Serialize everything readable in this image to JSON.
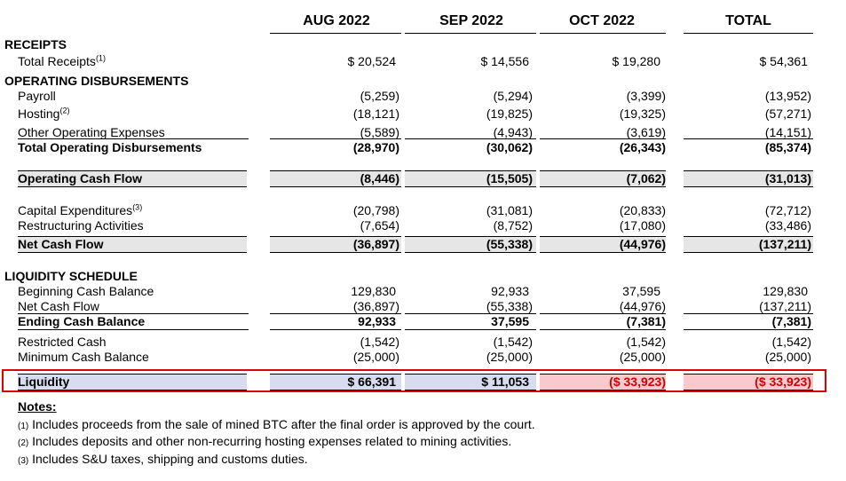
{
  "columns": [
    "AUG 2022",
    "SEP 2022",
    "OCT 2022",
    "TOTAL"
  ],
  "sections": {
    "receipts": "RECEIPTS",
    "operating": "OPERATING DISBURSEMENTS",
    "liquidity_schedule": "LIQUIDITY SCHEDULE"
  },
  "rows": {
    "total_receipts": {
      "label": "Total Receipts",
      "sup": "(1)",
      "values": [
        "$ 20,524",
        "$ 14,556",
        "$ 19,280",
        "$ 54,361"
      ]
    },
    "payroll": {
      "label": "Payroll",
      "values": [
        "(5,259)",
        "(5,294)",
        "(3,399)",
        "(13,952)"
      ]
    },
    "hosting": {
      "label": "Hosting",
      "sup": "(2)",
      "values": [
        "(18,121)",
        "(19,825)",
        "(19,325)",
        "(57,271)"
      ]
    },
    "other_opex": {
      "label": "Other Operating Expenses",
      "values": [
        "(5,589)",
        "(4,943)",
        "(3,619)",
        "(14,151)"
      ]
    },
    "total_opex": {
      "label": "Total Operating Disbursements",
      "values": [
        "(28,970)",
        "(30,062)",
        "(26,343)",
        "(85,374)"
      ]
    },
    "op_cash_flow": {
      "label": "Operating Cash Flow",
      "values": [
        "(8,446)",
        "(15,505)",
        "(7,062)",
        "(31,013)"
      ]
    },
    "capex": {
      "label": "Capital Expenditures",
      "sup": "(3)",
      "values": [
        "(20,798)",
        "(31,081)",
        "(20,833)",
        "(72,712)"
      ]
    },
    "restructuring": {
      "label": "Restructuring Activities",
      "values": [
        "(7,654)",
        "(8,752)",
        "(17,080)",
        "(33,486)"
      ]
    },
    "net_cash_flow": {
      "label": "Net Cash Flow",
      "values": [
        "(36,897)",
        "(55,338)",
        "(44,976)",
        "(137,211)"
      ]
    },
    "beginning_cash": {
      "label": "Beginning Cash Balance",
      "values": [
        "129,830",
        "92,933",
        "37,595",
        "129,830"
      ]
    },
    "net_cash_flow_2": {
      "label": "Net Cash Flow",
      "values": [
        "(36,897)",
        "(55,338)",
        "(44,976)",
        "(137,211)"
      ]
    },
    "ending_cash": {
      "label": "Ending Cash Balance",
      "values": [
        "92,933",
        "37,595",
        "(7,381)",
        "(7,381)"
      ]
    },
    "restricted_cash": {
      "label": "Restricted Cash",
      "values": [
        "(1,542)",
        "(1,542)",
        "(1,542)",
        "(1,542)"
      ]
    },
    "min_cash": {
      "label": "Minimum Cash Balance",
      "values": [
        "(25,000)",
        "(25,000)",
        "(25,000)",
        "(25,000)"
      ]
    },
    "liquidity": {
      "label": "Liquidity",
      "values": [
        "$ 66,391",
        "$ 11,053",
        "($ 33,923)",
        "($ 33,923)"
      ]
    }
  },
  "notes": {
    "title": "Notes:",
    "items": [
      {
        "num": "(1)",
        "text": "Includes proceeds from the sale of mined BTC after the final order is approved by the court."
      },
      {
        "num": "(2)",
        "text": "Includes deposits and other non-recurring hosting expenses related to mining activities."
      },
      {
        "num": "(3)",
        "text": "Includes S&U taxes, shipping and customs duties."
      }
    ]
  },
  "colors": {
    "band_gray": "#e6e6e6",
    "band_blue": "#d9dcef",
    "band_pink": "#f9c9cd",
    "highlight_red": "#e00000",
    "negative_red": "#d00000"
  }
}
